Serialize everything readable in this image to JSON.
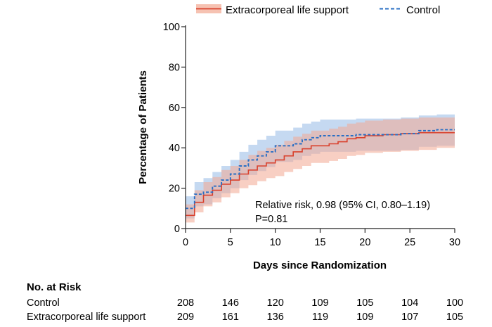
{
  "chart_data": {
    "type": "line",
    "step": true,
    "xlabel": "Days since Randomization",
    "ylabel": "Percentage of Patients",
    "xlim": [
      0,
      30
    ],
    "ylim": [
      0,
      100
    ],
    "xticks": [
      0,
      5,
      10,
      15,
      20,
      25,
      30
    ],
    "yticks": [
      0,
      20,
      40,
      60,
      80,
      100
    ],
    "grid": false,
    "legend_position": "top",
    "series": [
      {
        "name": "Extracorporeal life support",
        "color": "#d9402c",
        "band_color": "#f2a892",
        "line_style": "solid",
        "points": [
          [
            0,
            6.5
          ],
          [
            1,
            13
          ],
          [
            2,
            16.5
          ],
          [
            3,
            19
          ],
          [
            4,
            22
          ],
          [
            5,
            24
          ],
          [
            6,
            27
          ],
          [
            7,
            29
          ],
          [
            8,
            31
          ],
          [
            9,
            32.5
          ],
          [
            10,
            34
          ],
          [
            11,
            36
          ],
          [
            12,
            38
          ],
          [
            13,
            39.5
          ],
          [
            14,
            41
          ],
          [
            16,
            42
          ],
          [
            17,
            43
          ],
          [
            18,
            44.5
          ],
          [
            19,
            45
          ],
          [
            20,
            46
          ],
          [
            22,
            46.5
          ],
          [
            24,
            47
          ],
          [
            26,
            47.5
          ],
          [
            28,
            47.5
          ],
          [
            30,
            47.5
          ]
        ],
        "ci_lower": [
          [
            0,
            3
          ],
          [
            1,
            8
          ],
          [
            2,
            11
          ],
          [
            3,
            13
          ],
          [
            4,
            15.5
          ],
          [
            5,
            17.5
          ],
          [
            6,
            20
          ],
          [
            7,
            21.5
          ],
          [
            8,
            23.5
          ],
          [
            9,
            25
          ],
          [
            10,
            26
          ],
          [
            11,
            28
          ],
          [
            12,
            29.5
          ],
          [
            13,
            31
          ],
          [
            14,
            32.5
          ],
          [
            16,
            33.5
          ],
          [
            17,
            34.5
          ],
          [
            18,
            36
          ],
          [
            19,
            36.5
          ],
          [
            20,
            37.5
          ],
          [
            22,
            38
          ],
          [
            24,
            38.5
          ],
          [
            26,
            39
          ],
          [
            28,
            40
          ],
          [
            30,
            40.5
          ]
        ],
        "ci_upper": [
          [
            0,
            12
          ],
          [
            1,
            19
          ],
          [
            2,
            23
          ],
          [
            3,
            25.5
          ],
          [
            4,
            29
          ],
          [
            5,
            31
          ],
          [
            6,
            34
          ],
          [
            7,
            36.5
          ],
          [
            8,
            38.5
          ],
          [
            9,
            40
          ],
          [
            10,
            41.5
          ],
          [
            11,
            43.5
          ],
          [
            12,
            45.5
          ],
          [
            13,
            47
          ],
          [
            14,
            48.5
          ],
          [
            16,
            49.5
          ],
          [
            17,
            50.5
          ],
          [
            18,
            52
          ],
          [
            19,
            52.5
          ],
          [
            20,
            53.5
          ],
          [
            22,
            54
          ],
          [
            24,
            54.5
          ],
          [
            26,
            55
          ],
          [
            28,
            55
          ],
          [
            30,
            55
          ]
        ]
      },
      {
        "name": "Control",
        "color": "#2a6fc4",
        "band_color": "#9fc0e8",
        "line_style": "dashed",
        "points": [
          [
            0,
            10
          ],
          [
            1,
            17
          ],
          [
            2,
            18
          ],
          [
            3,
            21
          ],
          [
            4,
            24
          ],
          [
            5,
            27
          ],
          [
            6,
            31
          ],
          [
            7,
            34
          ],
          [
            8,
            36
          ],
          [
            9,
            38
          ],
          [
            10,
            41
          ],
          [
            12,
            42
          ],
          [
            13,
            44
          ],
          [
            14,
            45
          ],
          [
            15,
            46
          ],
          [
            18,
            46
          ],
          [
            19,
            46.5
          ],
          [
            21,
            46.5
          ],
          [
            24,
            47
          ],
          [
            26,
            48.5
          ],
          [
            28,
            49
          ],
          [
            30,
            49
          ]
        ],
        "ci_lower": [
          [
            0,
            5
          ],
          [
            1,
            11
          ],
          [
            2,
            12
          ],
          [
            3,
            15
          ],
          [
            4,
            17.5
          ],
          [
            5,
            20
          ],
          [
            6,
            24
          ],
          [
            7,
            26.5
          ],
          [
            8,
            28.5
          ],
          [
            9,
            30.5
          ],
          [
            10,
            33
          ],
          [
            12,
            34
          ],
          [
            13,
            36
          ],
          [
            14,
            37
          ],
          [
            15,
            38
          ],
          [
            18,
            38
          ],
          [
            19,
            38.5
          ],
          [
            21,
            38.5
          ],
          [
            24,
            39
          ],
          [
            26,
            40.5
          ],
          [
            28,
            41
          ],
          [
            30,
            41
          ]
        ],
        "ci_upper": [
          [
            0,
            16
          ],
          [
            1,
            23
          ],
          [
            2,
            25
          ],
          [
            3,
            28
          ],
          [
            4,
            31
          ],
          [
            5,
            34
          ],
          [
            6,
            38
          ],
          [
            7,
            41.5
          ],
          [
            8,
            44
          ],
          [
            9,
            46
          ],
          [
            10,
            48.5
          ],
          [
            12,
            50
          ],
          [
            13,
            52
          ],
          [
            14,
            53
          ],
          [
            15,
            54
          ],
          [
            18,
            54
          ],
          [
            19,
            54.5
          ],
          [
            21,
            54.5
          ],
          [
            24,
            55
          ],
          [
            26,
            56
          ],
          [
            28,
            56.5
          ],
          [
            30,
            56.5
          ]
        ]
      }
    ],
    "annotation": [
      "Relative risk, 0.98 (95% CI, 0.80–1.19)",
      "P=0.81"
    ],
    "at_risk": {
      "title": "No. at Risk",
      "days": [
        0,
        5,
        10,
        15,
        20,
        25,
        30
      ],
      "rows": [
        {
          "label": "Control",
          "values": [
            "208",
            "146",
            "120",
            "109",
            "105",
            "104",
            "100"
          ]
        },
        {
          "label": "Extracorporeal life support",
          "values": [
            "209",
            "161",
            "136",
            "119",
            "109",
            "107",
            "105"
          ]
        }
      ]
    }
  }
}
